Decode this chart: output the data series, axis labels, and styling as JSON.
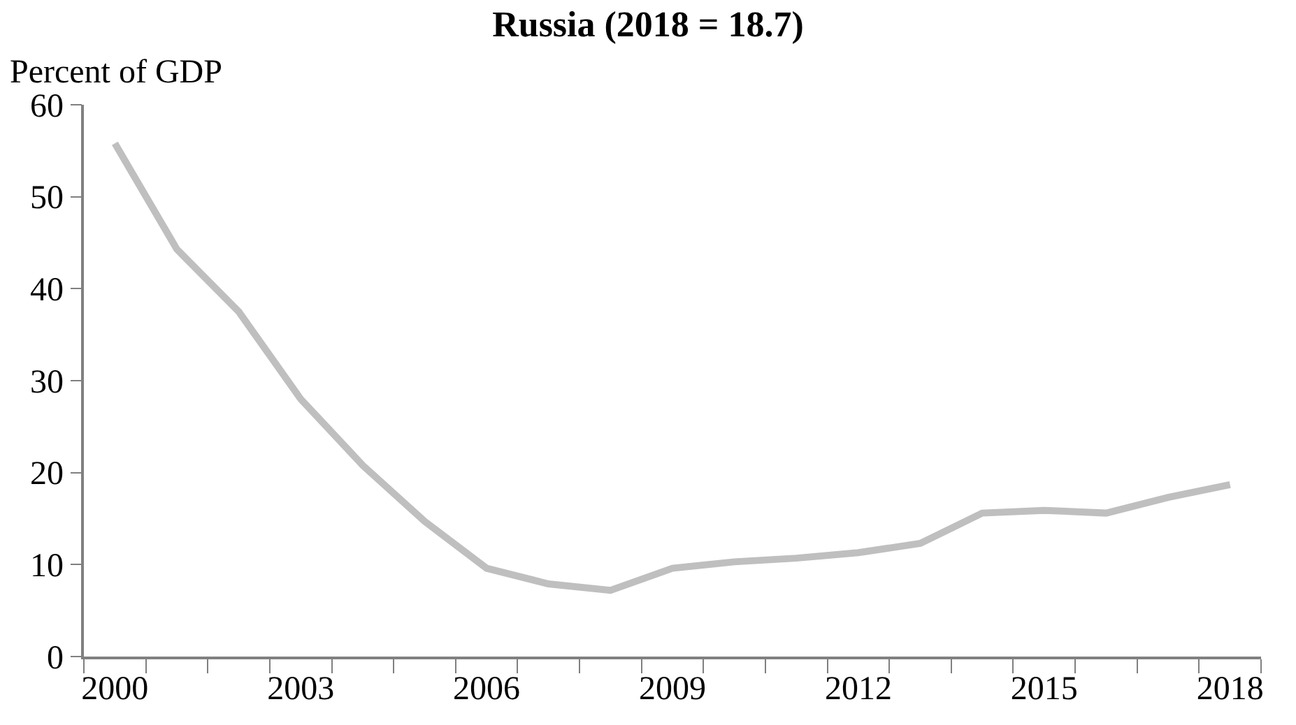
{
  "chart_data": {
    "type": "line",
    "title": "Russia (2018 = 18.7)",
    "ylabel": "Percent of GDP",
    "categories": [
      "2000",
      null,
      null,
      "2003",
      null,
      null,
      "2006",
      null,
      null,
      "2009",
      null,
      null,
      "2012",
      null,
      null,
      "2015",
      null,
      null,
      "2018"
    ],
    "series": [
      {
        "color": "#bfbfbf",
        "values": [
          55.8,
          44.3,
          37.5,
          28.0,
          20.8,
          14.7,
          9.6,
          7.9,
          7.2,
          9.6,
          10.3,
          10.7,
          11.3,
          12.3,
          15.6,
          15.9,
          15.6,
          17.3,
          18.7
        ]
      }
    ],
    "ylim": [
      0,
      60
    ],
    "yticks": [
      0,
      10,
      20,
      30,
      40,
      50,
      60
    ],
    "marker": "none",
    "line_style": "solid"
  }
}
